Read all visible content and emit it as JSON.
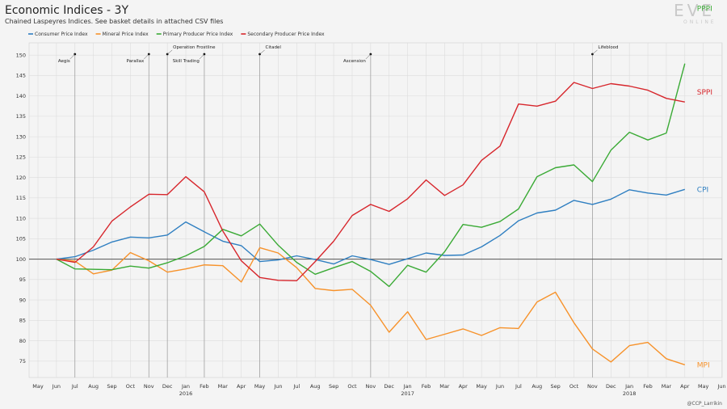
{
  "header": {
    "title": "Economic Indices - 3Y",
    "subtitle": "Chained Laspeyres Indices. See basket details in attached CSV files"
  },
  "branding": {
    "logo_text": "EVE",
    "logo_sub": "ONLINE",
    "credit": "@CCP_Larrikin"
  },
  "chart_data": {
    "type": "line",
    "x": [
      "2015-05",
      "2015-06",
      "2015-07",
      "2015-08",
      "2015-09",
      "2015-10",
      "2015-11",
      "2015-12",
      "2016-01",
      "2016-02",
      "2016-03",
      "2016-04",
      "2016-05",
      "2016-06",
      "2016-07",
      "2016-08",
      "2016-09",
      "2016-10",
      "2016-11",
      "2016-12",
      "2017-01",
      "2017-02",
      "2017-03",
      "2017-04",
      "2017-05",
      "2017-06",
      "2017-07",
      "2017-08",
      "2017-09",
      "2017-10",
      "2017-11",
      "2017-12",
      "2018-01",
      "2018-02",
      "2018-03",
      "2018-04",
      "2018-05",
      "2018-06"
    ],
    "x_tick_labels": [
      "May",
      "Jun",
      "Jul",
      "Aug",
      "Sep",
      "Oct",
      "Nov",
      "Dec",
      "Jan",
      "Feb",
      "Mar",
      "Apr",
      "May",
      "Jun",
      "Jul",
      "Aug",
      "Sep",
      "Oct",
      "Nov",
      "Dec",
      "Jan",
      "Feb",
      "Mar",
      "Apr",
      "May",
      "Jun",
      "Jul",
      "Aug",
      "Sep",
      "Oct",
      "Nov",
      "Dec",
      "Jan",
      "Feb",
      "Mar",
      "Apr",
      "May",
      "Jun"
    ],
    "year_labels": [
      {
        "x": "2016-01",
        "label": "2016"
      },
      {
        "x": "2017-01",
        "label": "2017"
      },
      {
        "x": "2018-01",
        "label": "2018"
      }
    ],
    "ylim": [
      71,
      153
    ],
    "yticks": [
      75,
      80,
      85,
      90,
      95,
      100,
      105,
      110,
      115,
      120,
      125,
      130,
      135,
      140,
      145,
      150
    ],
    "reference_line": 100,
    "grid": true,
    "legend_position": "top-left",
    "series": [
      {
        "name": "Consumer Price Index",
        "end_label": "CPI",
        "color": "#2f7fc1",
        "points": [
          [
            "2015-06",
            100
          ],
          [
            "2015-07",
            100.6
          ],
          [
            "2015-08",
            102.2
          ],
          [
            "2015-09",
            104.2
          ],
          [
            "2015-10",
            105.4
          ],
          [
            "2015-11",
            105.2
          ],
          [
            "2015-12",
            105.9
          ],
          [
            "2016-01",
            109.1
          ],
          [
            "2016-02",
            106.7
          ],
          [
            "2016-03",
            104.4
          ],
          [
            "2016-04",
            103.3
          ],
          [
            "2016-05",
            99.4
          ],
          [
            "2016-06",
            99.8
          ],
          [
            "2016-07",
            100.8
          ],
          [
            "2016-08",
            99.9
          ],
          [
            "2016-09",
            98.8
          ],
          [
            "2016-10",
            100.8
          ],
          [
            "2016-11",
            99.9
          ],
          [
            "2016-12",
            98.7
          ],
          [
            "2017-01",
            100.1
          ],
          [
            "2017-02",
            101.5
          ],
          [
            "2017-03",
            100.9
          ],
          [
            "2017-04",
            101.0
          ],
          [
            "2017-05",
            103.0
          ],
          [
            "2017-06",
            105.8
          ],
          [
            "2017-07",
            109.4
          ],
          [
            "2017-08",
            111.3
          ],
          [
            "2017-09",
            112.0
          ],
          [
            "2017-10",
            114.4
          ],
          [
            "2017-11",
            113.4
          ],
          [
            "2017-12",
            114.7
          ],
          [
            "2018-01",
            117.0
          ],
          [
            "2018-02",
            116.2
          ],
          [
            "2018-03",
            115.7
          ],
          [
            "2018-04",
            117.1
          ]
        ]
      },
      {
        "name": "Mineral Price Index",
        "end_label": "MPI",
        "color": "#f7922a",
        "points": [
          [
            "2015-06",
            100
          ],
          [
            "2015-07",
            99.5
          ],
          [
            "2015-08",
            96.4
          ],
          [
            "2015-09",
            97.3
          ],
          [
            "2015-10",
            101.6
          ],
          [
            "2015-11",
            99.6
          ],
          [
            "2015-12",
            96.8
          ],
          [
            "2016-01",
            97.6
          ],
          [
            "2016-02",
            98.6
          ],
          [
            "2016-03",
            98.4
          ],
          [
            "2016-04",
            94.4
          ],
          [
            "2016-05",
            102.8
          ],
          [
            "2016-06",
            101.5
          ],
          [
            "2016-07",
            97.9
          ],
          [
            "2016-08",
            92.8
          ],
          [
            "2016-09",
            92.3
          ],
          [
            "2016-10",
            92.6
          ],
          [
            "2016-11",
            88.7
          ],
          [
            "2016-12",
            82.1
          ],
          [
            "2017-01",
            87.1
          ],
          [
            "2017-02",
            80.3
          ],
          [
            "2017-03",
            81.6
          ],
          [
            "2017-04",
            82.9
          ],
          [
            "2017-05",
            81.3
          ],
          [
            "2017-06",
            83.2
          ],
          [
            "2017-07",
            83.0
          ],
          [
            "2017-08",
            89.5
          ],
          [
            "2017-09",
            91.9
          ],
          [
            "2017-10",
            84.4
          ],
          [
            "2017-11",
            78.0
          ],
          [
            "2017-12",
            74.8
          ],
          [
            "2018-01",
            78.8
          ],
          [
            "2018-02",
            79.6
          ],
          [
            "2018-03",
            75.6
          ],
          [
            "2018-04",
            74.1
          ]
        ]
      },
      {
        "name": "Primary Producer Price Index",
        "end_label": "PPPI",
        "color": "#3aaa35",
        "points": [
          [
            "2015-06",
            100
          ],
          [
            "2015-07",
            97.6
          ],
          [
            "2015-08",
            97.5
          ],
          [
            "2015-09",
            97.4
          ],
          [
            "2015-10",
            98.3
          ],
          [
            "2015-11",
            97.8
          ],
          [
            "2015-12",
            99.1
          ],
          [
            "2016-01",
            100.8
          ],
          [
            "2016-02",
            103.1
          ],
          [
            "2016-03",
            107.3
          ],
          [
            "2016-04",
            105.7
          ],
          [
            "2016-05",
            108.6
          ],
          [
            "2016-06",
            103.4
          ],
          [
            "2016-07",
            99.2
          ],
          [
            "2016-08",
            96.3
          ],
          [
            "2016-09",
            97.9
          ],
          [
            "2016-10",
            99.4
          ],
          [
            "2016-11",
            97.0
          ],
          [
            "2016-12",
            93.3
          ],
          [
            "2017-01",
            98.5
          ],
          [
            "2017-02",
            96.8
          ],
          [
            "2017-03",
            101.8
          ],
          [
            "2017-04",
            108.5
          ],
          [
            "2017-05",
            107.8
          ],
          [
            "2017-06",
            109.2
          ],
          [
            "2017-07",
            112.3
          ],
          [
            "2017-08",
            120.2
          ],
          [
            "2017-09",
            122.4
          ],
          [
            "2017-10",
            123.1
          ],
          [
            "2017-11",
            119.0
          ],
          [
            "2017-12",
            126.7
          ],
          [
            "2018-01",
            131.1
          ],
          [
            "2018-02",
            129.2
          ],
          [
            "2018-03",
            130.9
          ],
          [
            "2018-04",
            147.9
          ]
        ]
      },
      {
        "name": "Secondary Producer Price Index",
        "end_label": "SPPI",
        "color": "#d7262c",
        "points": [
          [
            "2015-06",
            100
          ],
          [
            "2015-07",
            99.2
          ],
          [
            "2015-08",
            103.0
          ],
          [
            "2015-09",
            109.3
          ],
          [
            "2015-10",
            112.8
          ],
          [
            "2015-11",
            115.9
          ],
          [
            "2015-12",
            115.8
          ],
          [
            "2016-01",
            120.2
          ],
          [
            "2016-02",
            116.5
          ],
          [
            "2016-03",
            106.9
          ],
          [
            "2016-04",
            99.6
          ],
          [
            "2016-05",
            95.5
          ],
          [
            "2016-06",
            94.8
          ],
          [
            "2016-07",
            94.7
          ],
          [
            "2016-08",
            99.4
          ],
          [
            "2016-09",
            104.4
          ],
          [
            "2016-10",
            110.7
          ],
          [
            "2016-11",
            113.4
          ],
          [
            "2016-12",
            111.7
          ],
          [
            "2017-01",
            114.8
          ],
          [
            "2017-02",
            119.4
          ],
          [
            "2017-03",
            115.6
          ],
          [
            "2017-04",
            118.2
          ],
          [
            "2017-05",
            124.2
          ],
          [
            "2017-06",
            127.7
          ],
          [
            "2017-07",
            138.0
          ],
          [
            "2017-08",
            137.5
          ],
          [
            "2017-09",
            138.7
          ],
          [
            "2017-10",
            143.3
          ],
          [
            "2017-11",
            141.8
          ],
          [
            "2017-12",
            143.0
          ],
          [
            "2018-01",
            142.4
          ],
          [
            "2018-02",
            141.4
          ],
          [
            "2018-03",
            139.4
          ],
          [
            "2018-04",
            138.5
          ]
        ]
      }
    ],
    "annotations": [
      {
        "x": "2015-07",
        "label": "Aegis"
      },
      {
        "x": "2015-11",
        "label": "Parallax"
      },
      {
        "x": "2015-12",
        "label": "Operation Frostline"
      },
      {
        "x": "2016-02",
        "label": "Skill Trading"
      },
      {
        "x": "2016-05",
        "label": "Citadel"
      },
      {
        "x": "2016-11",
        "label": "Ascension"
      },
      {
        "x": "2017-11",
        "label": "Lifeblood"
      }
    ]
  }
}
